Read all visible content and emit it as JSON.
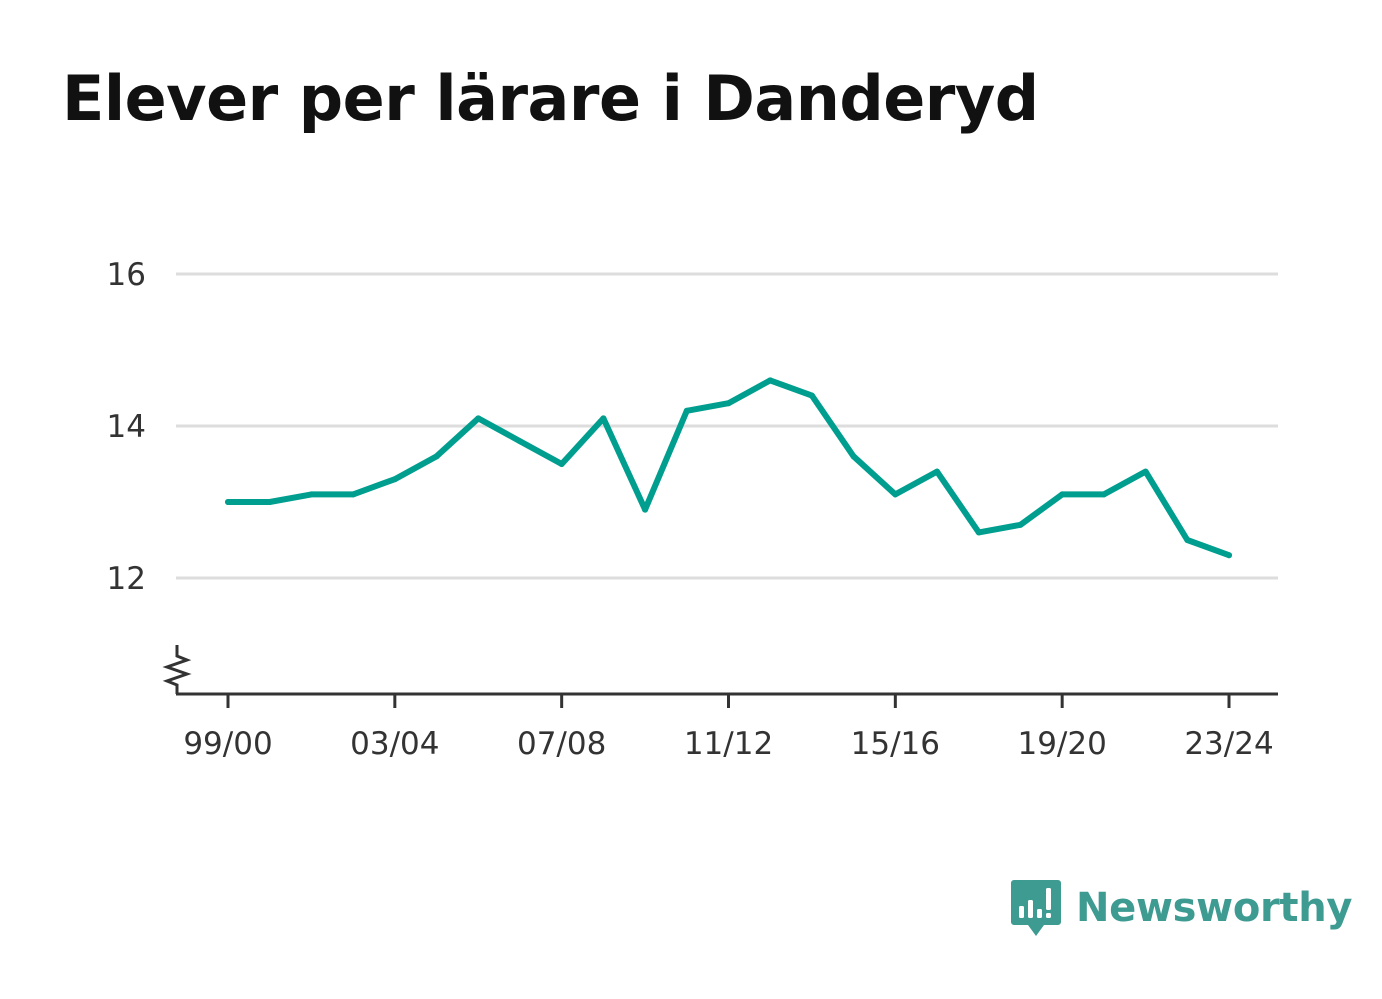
{
  "title": "Elever per lärare i Danderyd",
  "brand": {
    "name": "Newsworthy",
    "color": "#3d9b92",
    "icon": "bar-chart-speech-bubble-icon"
  },
  "chart_data": {
    "type": "line",
    "title": "Elever per lärare i Danderyd",
    "xlabel": "",
    "ylabel": "",
    "x": [
      "99/00",
      "00/01",
      "01/02",
      "02/03",
      "03/04",
      "04/05",
      "05/06",
      "06/07",
      "07/08",
      "08/09",
      "09/10",
      "10/11",
      "11/12",
      "12/13",
      "13/14",
      "14/15",
      "15/16",
      "16/17",
      "17/18",
      "18/19",
      "19/20",
      "20/21",
      "21/22",
      "22/23",
      "23/24"
    ],
    "xtick_labels": [
      "99/00",
      "03/04",
      "07/08",
      "11/12",
      "15/16",
      "19/20",
      "23/24"
    ],
    "series": [
      {
        "values": [
          13.0,
          13.0,
          13.1,
          13.1,
          13.3,
          13.6,
          14.1,
          13.8,
          13.5,
          14.1,
          12.9,
          14.2,
          14.3,
          14.6,
          14.4,
          13.6,
          13.1,
          13.4,
          12.6,
          12.7,
          13.1,
          13.1,
          13.4,
          12.5,
          12.3
        ],
        "color": "#009e8f"
      }
    ],
    "yticks": [
      "12",
      "14",
      "16"
    ],
    "ylim": [
      10.5,
      16
    ],
    "grid": true,
    "axis_break": true,
    "colors": {
      "line": "#009e8f",
      "grid": "#dddddd",
      "axis": "#333333"
    }
  }
}
